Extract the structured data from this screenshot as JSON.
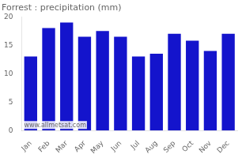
{
  "chart_data": {
    "type": "bar",
    "title": "Forrest : precipitation (mm)",
    "categories": [
      "Jan",
      "Feb",
      "Mar",
      "Apr",
      "May",
      "Jun",
      "Jul",
      "Aug",
      "Sep",
      "Oct",
      "Nov",
      "Dec"
    ],
    "values": [
      13.0,
      18.0,
      19.0,
      16.5,
      17.5,
      16.5,
      13.0,
      13.5,
      17.0,
      15.8,
      14.0,
      17.0
    ],
    "color": "#1414cc",
    "ylim": [
      0,
      20
    ],
    "yticks": [
      0,
      5,
      10,
      15,
      20
    ],
    "grid": false,
    "annotation": "www.allmetsat.com"
  }
}
